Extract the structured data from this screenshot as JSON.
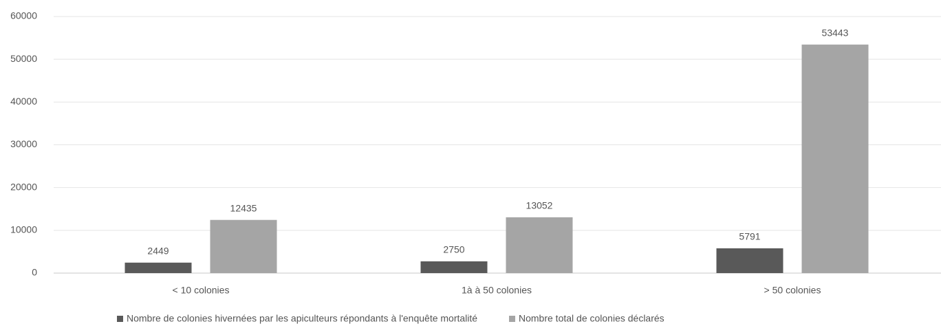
{
  "chart_data": {
    "type": "bar",
    "categories": [
      "< 10 colonies",
      "1à à 50 colonies",
      "> 50 colonies"
    ],
    "series": [
      {
        "name": "Nombre de colonies hivernées par les apiculteurs répondants à l'enquête mortalité",
        "color": "#595959",
        "values": [
          2449,
          2750,
          5791
        ]
      },
      {
        "name": "Nombre total de colonies déclarés",
        "color": "#a5a5a5",
        "values": [
          12435,
          13052,
          53443
        ]
      }
    ],
    "ylim": [
      0,
      60000
    ],
    "yticks": [
      0,
      10000,
      20000,
      30000,
      40000,
      50000,
      60000
    ],
    "grid": true,
    "legend": "bottom"
  }
}
